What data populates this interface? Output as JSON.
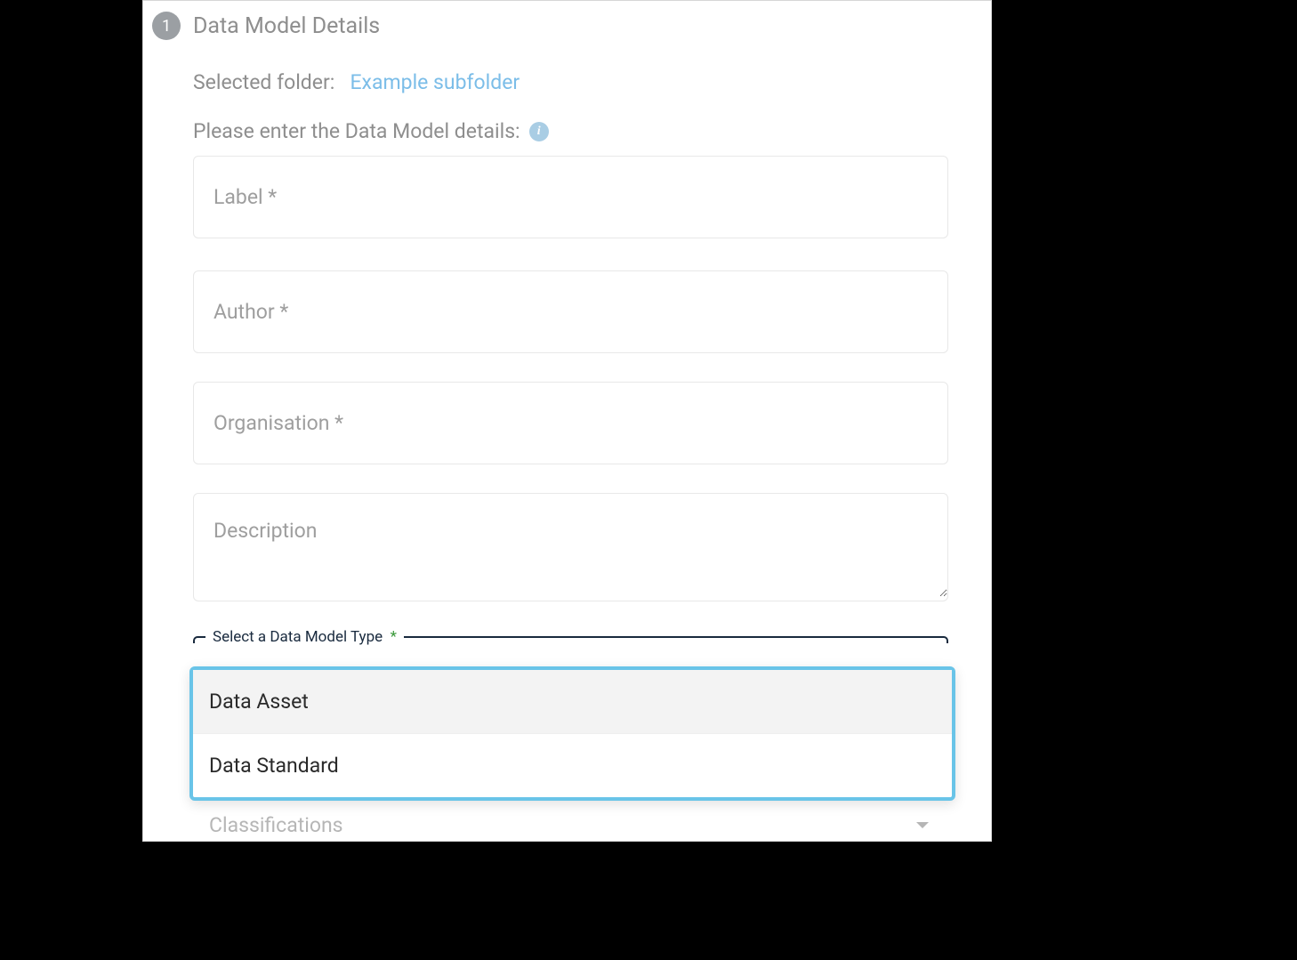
{
  "step": {
    "number": "1",
    "title": "Data Model Details",
    "badge_bg": "#9b9fa3",
    "badge_fg": "#ffffff"
  },
  "folder": {
    "label": "Selected folder:",
    "value": "Example subfolder",
    "link_color": "#7bbde8"
  },
  "instruction": "Please enter the Data Model details:",
  "info_icon_glyph": "i",
  "fields": {
    "label_placeholder": "Label *",
    "author_placeholder": "Author *",
    "organisation_placeholder": "Organisation *",
    "description_placeholder": "Description"
  },
  "select": {
    "label": "Select a Data Model Type",
    "required_marker": "*",
    "border_color": "#192a3e",
    "options": [
      "Data Asset",
      "Data Standard"
    ],
    "highlight_bg": "#f3f3f3",
    "dropdown_border": "#69c4e8"
  },
  "classifications": {
    "placeholder": "Classifications"
  },
  "colors": {
    "panel_bg": "#ffffff",
    "panel_border": "#d6d6d6",
    "muted_text": "#8e8e8e",
    "field_border": "#e8e8e8",
    "outer_bg": "#000000"
  }
}
